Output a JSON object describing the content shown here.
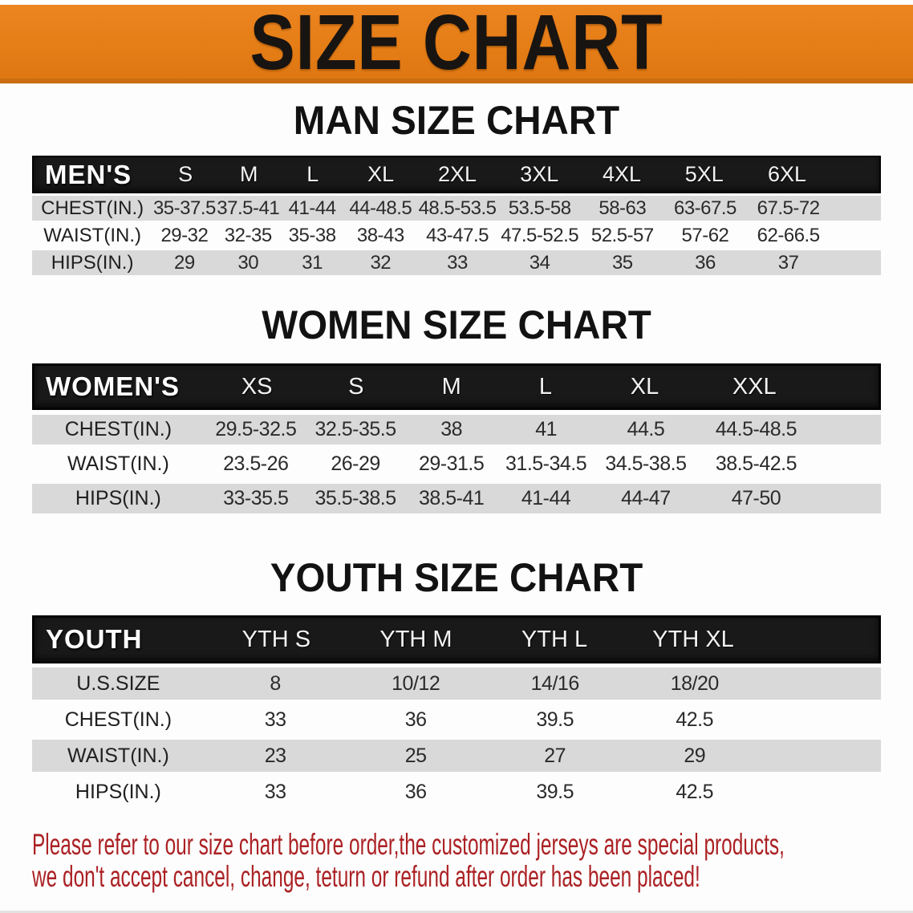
{
  "banner": {
    "title": "SIZE CHART"
  },
  "sections": {
    "men": {
      "title": "MAN SIZE CHART",
      "table": {
        "corner": "MEN'S",
        "sizes": [
          "S",
          "M",
          "L",
          "XL",
          "2XL",
          "3XL",
          "4XL",
          "5XL",
          "6XL"
        ],
        "rows": [
          {
            "label": "CHEST(IN.)",
            "values": [
              "35-37.5",
              "37.5-41",
              "41-44",
              "44-48.5",
              "48.5-53.5",
              "53.5-58",
              "58-63",
              "63-67.5",
              "67.5-72"
            ]
          },
          {
            "label": "WAIST(IN.)",
            "values": [
              "29-32",
              "32-35",
              "35-38",
              "38-43",
              "43-47.5",
              "47.5-52.5",
              "52.5-57",
              "57-62",
              "62-66.5"
            ]
          },
          {
            "label": "HIPS(IN.)",
            "values": [
              "29",
              "30",
              "31",
              "32",
              "33",
              "34",
              "35",
              "36",
              "37"
            ]
          }
        ]
      }
    },
    "women": {
      "title": "WOMEN SIZE CHART",
      "table": {
        "corner": "WOMEN'S",
        "sizes": [
          "XS",
          "S",
          "M",
          "L",
          "XL",
          "XXL"
        ],
        "rows": [
          {
            "label": "CHEST(IN.)",
            "values": [
              "29.5-32.5",
              "32.5-35.5",
              "38",
              "41",
              "44.5",
              "44.5-48.5"
            ]
          },
          {
            "label": "WAIST(IN.)",
            "values": [
              "23.5-26",
              "26-29",
              "29-31.5",
              "31.5-34.5",
              "34.5-38.5",
              "38.5-42.5"
            ]
          },
          {
            "label": "HIPS(IN.)",
            "values": [
              "33-35.5",
              "35.5-38.5",
              "38.5-41",
              "41-44",
              "44-47",
              "47-50"
            ]
          }
        ]
      }
    },
    "youth": {
      "title": "YOUTH SIZE CHART",
      "table": {
        "corner": "YOUTH",
        "sizes": [
          "YTH S",
          "YTH M",
          "YTH L",
          "YTH XL"
        ],
        "rows": [
          {
            "label": "U.S.SIZE",
            "values": [
              "8",
              "10/12",
              "14/16",
              "18/20"
            ]
          },
          {
            "label": "CHEST(IN.)",
            "values": [
              "33",
              "36",
              "39.5",
              "42.5"
            ]
          },
          {
            "label": "WAIST(IN.)",
            "values": [
              "23",
              "25",
              "27",
              "29"
            ]
          },
          {
            "label": "HIPS(IN.)",
            "values": [
              "33",
              "36",
              "39.5",
              "42.5"
            ]
          }
        ]
      }
    }
  },
  "disclaimer": {
    "line1": "Please refer to our size chart before order,the customized jerseys are special products,",
    "line2": "we don't accept cancel, change, teturn or refund after order has been placed!"
  },
  "colors": {
    "banner_orange": "#e67e17",
    "banner_border": "#c96d10",
    "header_black": "#191919",
    "row_gray": "#d9d9d9",
    "row_white": "#fdfdfd",
    "disclaimer_red": "#ab2124",
    "title_black": "#121212"
  }
}
